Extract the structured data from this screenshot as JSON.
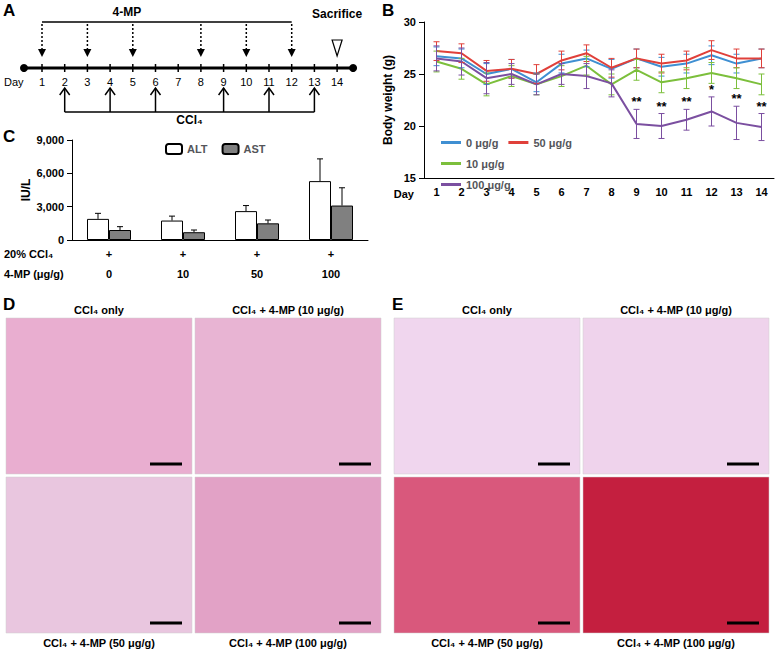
{
  "panel_labels": [
    "A",
    "B",
    "C",
    "D",
    "E"
  ],
  "timeline": {
    "day_label": "Day",
    "days": [
      1,
      2,
      3,
      4,
      5,
      6,
      7,
      8,
      9,
      10,
      11,
      12,
      13,
      14
    ],
    "treatment_top": {
      "label": "4-MP",
      "days": [
        1,
        3,
        5,
        8,
        10,
        12
      ]
    },
    "treatment_bottom": {
      "label": "CCl₄",
      "days": [
        2,
        4,
        6,
        9,
        11,
        13
      ]
    },
    "endpoint": {
      "label": "Sacrifice",
      "day": 14
    }
  },
  "chart_data": [
    {
      "type": "line",
      "ylabel": "Body weight (g)",
      "xlabel": "Day",
      "categories": [
        1,
        2,
        3,
        4,
        5,
        6,
        7,
        8,
        9,
        10,
        11,
        12,
        13,
        14
      ],
      "ylim": [
        15,
        30
      ],
      "yticks": [
        15,
        20,
        25,
        30
      ],
      "grid": false,
      "legend": "lower left",
      "marker": "none",
      "series": [
        {
          "name": "0 μg/g",
          "color": "#3f8fd2",
          "values": [
            26.7,
            26.5,
            25.0,
            25.5,
            24.2,
            26.0,
            26.5,
            25.5,
            26.5,
            25.7,
            26.0,
            26.8,
            26.0,
            26.5
          ],
          "errors": [
            0.9,
            0.9,
            1.0,
            0.9,
            0.9,
            0.9,
            0.8,
            0.9,
            0.9,
            0.9,
            0.9,
            0.9,
            0.9,
            0.9
          ]
        },
        {
          "name": "50 μg/g",
          "color": "#e0403a",
          "values": [
            27.2,
            27.0,
            25.3,
            25.5,
            25.0,
            26.3,
            27.0,
            25.6,
            26.5,
            26.0,
            26.3,
            27.3,
            26.5,
            26.5
          ],
          "errors": [
            0.9,
            0.9,
            1.0,
            0.9,
            0.9,
            0.9,
            0.8,
            0.9,
            0.9,
            0.9,
            0.9,
            0.9,
            0.9,
            0.9
          ]
        },
        {
          "name": "10 μg/g",
          "color": "#7cbf3c",
          "values": [
            26.2,
            25.5,
            24.0,
            24.8,
            24.0,
            24.8,
            25.8,
            24.0,
            25.4,
            24.2,
            24.6,
            25.1,
            24.6,
            24.0
          ],
          "errors": [
            1.0,
            1.0,
            1.1,
            1.0,
            1.0,
            1.0,
            0.9,
            1.0,
            1.0,
            1.0,
            1.0,
            1.0,
            1.0,
            1.0
          ]
        },
        {
          "name": "100 μg/g",
          "color": "#7b4fa0",
          "values": [
            26.5,
            26.2,
            24.6,
            25.0,
            24.0,
            25.0,
            24.8,
            24.1,
            20.2,
            20.0,
            20.6,
            21.4,
            20.3,
            19.9
          ],
          "errors": [
            1.2,
            1.3,
            1.5,
            1.0,
            1.0,
            1.0,
            1.2,
            1.3,
            1.4,
            1.2,
            1.0,
            1.4,
            1.6,
            1.3
          ],
          "significance": [
            null,
            null,
            null,
            null,
            null,
            null,
            null,
            null,
            "**",
            "**",
            "**",
            "*",
            "**",
            "**"
          ]
        }
      ]
    },
    {
      "type": "bar",
      "ylabel": "IU/L",
      "xlabel": "4-MP (μg/g)",
      "categories": [
        0,
        10,
        50,
        100
      ],
      "category_rows": [
        {
          "label": "20% CCl₄",
          "values": [
            "+",
            "+",
            "+",
            "+"
          ]
        }
      ],
      "ylim": [
        0,
        9000
      ],
      "yticks": [
        0,
        3000,
        6000,
        9000
      ],
      "grid": false,
      "legend": "top",
      "series": [
        {
          "name": "ALT",
          "color": "#ffffff",
          "values": [
            1900,
            1750,
            2600,
            5300
          ],
          "errors": [
            500,
            400,
            500,
            2000
          ]
        },
        {
          "name": "AST",
          "color": "#808080",
          "values": [
            900,
            700,
            1500,
            3100
          ],
          "errors": [
            300,
            200,
            300,
            1600
          ]
        }
      ]
    }
  ],
  "micrographs": [
    {
      "panel": "D",
      "images": [
        {
          "label": "CCl₄ only",
          "color": "#e9aed0"
        },
        {
          "label": "CCl₄ + 4-MP (10 μg/g)",
          "color": "#e8b4d3"
        },
        {
          "label": "CCl₄ + 4-MP (50 μg/g)",
          "color": "#e9c6df"
        },
        {
          "label": "CCl₄ + 4-MP (100 μg/g)",
          "color": "#e2a2c6"
        }
      ]
    },
    {
      "panel": "E",
      "images": [
        {
          "label": "CCl₄ only",
          "color": "#f0d6ee"
        },
        {
          "label": "CCl₄ + 4-MP (10 μg/g)",
          "color": "#efd3ec"
        },
        {
          "label": "CCl₄ + 4-MP (50 μg/g)",
          "color": "#d9587c"
        },
        {
          "label": "CCl₄ + 4-MP (100 μg/g)",
          "color": "#c41f3f"
        }
      ]
    }
  ]
}
